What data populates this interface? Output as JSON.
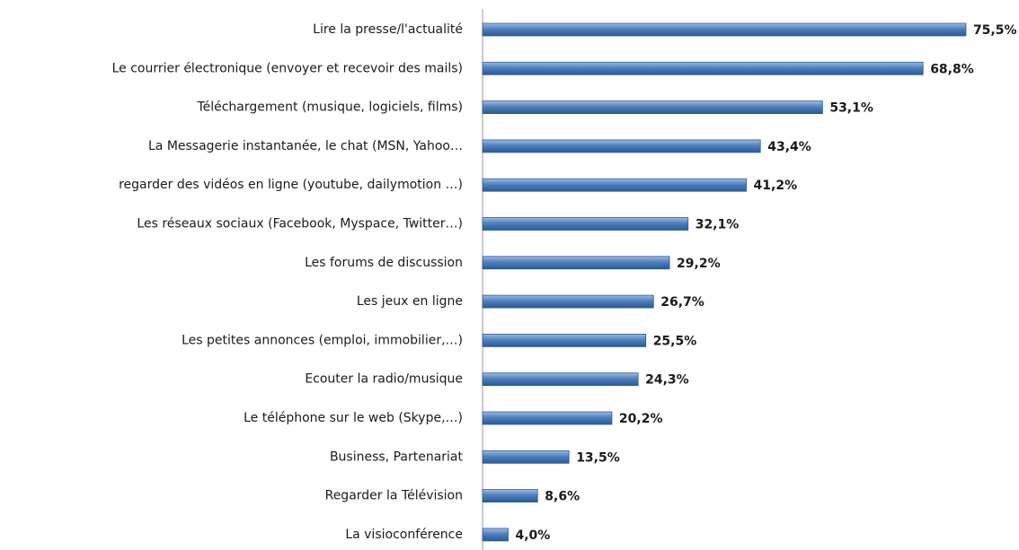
{
  "chart_data": {
    "type": "bar",
    "orientation": "horizontal",
    "categories": [
      "Lire la presse/l'actualité",
      "Le courrier électronique (envoyer et recevoir des mails)",
      "Téléchargement (musique, logiciels, films)",
      "La Messagerie instantanée, le chat (MSN, Yahoo…",
      "regarder des vidéos en ligne (youtube, dailymotion …)",
      "Les réseaux sociaux (Facebook, Myspace, Twitter…)",
      "Les forums de discussion",
      "Les jeux en ligne",
      "Les petites annonces (emploi, immobilier,…)",
      "Ecouter la radio/musique",
      "Le téléphone sur le web (Skype,…)",
      "Business, Partenariat",
      "Regarder la Télévision",
      "La visioconférence"
    ],
    "values": [
      75.5,
      68.8,
      53.1,
      43.4,
      41.2,
      32.1,
      29.2,
      26.7,
      25.5,
      24.3,
      20.2,
      13.5,
      8.6,
      4.0
    ],
    "value_labels": [
      "75,5%",
      "68,8%",
      "53,1%",
      "43,4%",
      "41,2%",
      "32,1%",
      "29,2%",
      "26,7%",
      "25,5%",
      "24,3%",
      "20,2%",
      "13,5%",
      "8,6%",
      "4,0%"
    ],
    "color": "#4f81bd",
    "xlim": [
      0,
      80
    ]
  }
}
